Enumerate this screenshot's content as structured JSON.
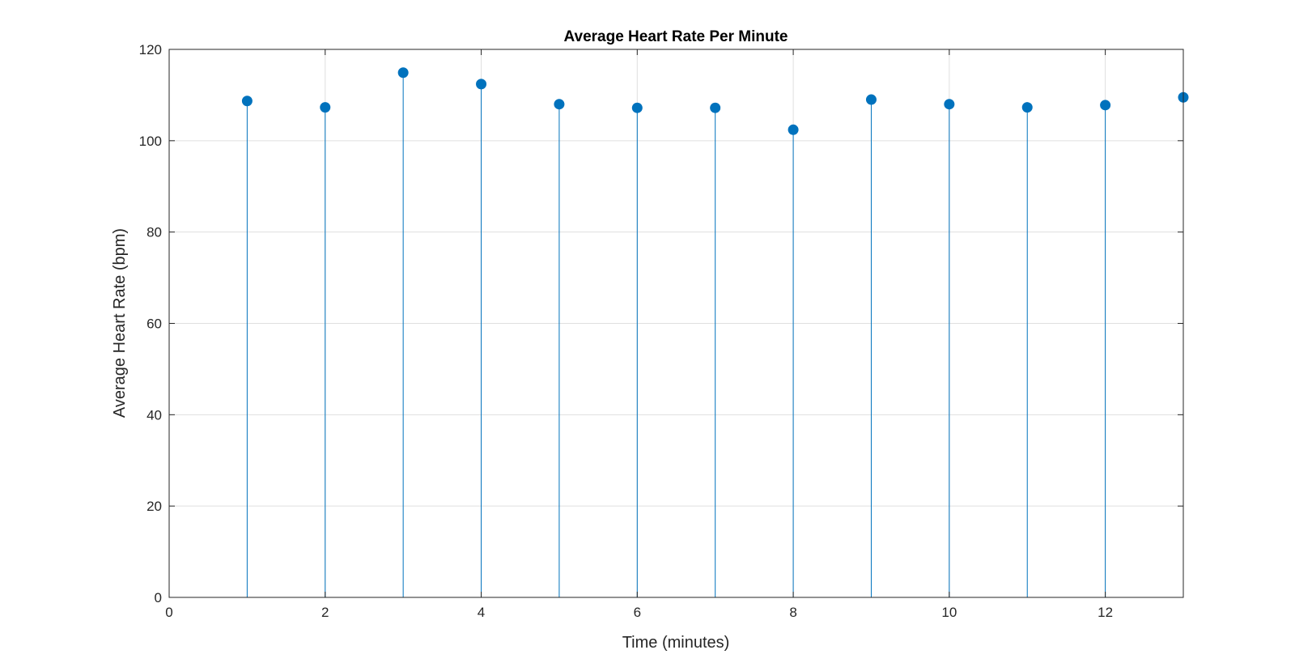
{
  "chart_data": {
    "type": "stem",
    "title": "Average Heart Rate Per Minute",
    "xlabel": "Time (minutes)",
    "ylabel": "Average Heart Rate (bpm)",
    "xlim": [
      0,
      13
    ],
    "ylim": [
      0,
      120
    ],
    "xticks": [
      "0",
      "2",
      "4",
      "6",
      "8",
      "10",
      "12"
    ],
    "yticks": [
      "0",
      "20",
      "40",
      "60",
      "80",
      "100",
      "120"
    ],
    "x": [
      1,
      2,
      3,
      4,
      5,
      6,
      7,
      8,
      9,
      10,
      11,
      12,
      13
    ],
    "y": [
      108.7,
      107.3,
      114.9,
      112.4,
      108.0,
      107.2,
      107.2,
      102.4,
      109.0,
      108.0,
      107.3,
      107.8,
      109.5
    ],
    "grid": true,
    "color": "#0072BD"
  }
}
